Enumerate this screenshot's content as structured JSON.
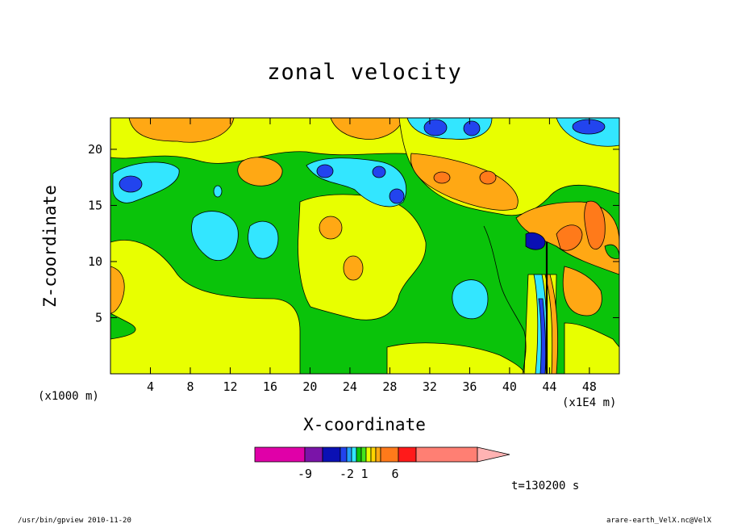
{
  "title": "zonal velocity",
  "x_unit_left": "(x1000 m)",
  "x_unit_right": "(x1E4 m)",
  "time_label": "t=130200 s",
  "footer_left": "/usr/bin/gpview  2010-11-20",
  "footer_right": "arare-earth_VelX.nc@VelX",
  "colorbar": {
    "colors": [
      "#e000a8",
      "#7a14a8",
      "#0a10b4",
      "#2244ee",
      "#22a0ff",
      "#33e6ff",
      "#0ac30a",
      "#44e41c",
      "#e8ff00",
      "#ffd400",
      "#ffa814",
      "#ff7a1a",
      "#ff1a1a",
      "#ff7f73",
      "#ffb3b3"
    ],
    "tick_labels": [
      "-9",
      "-2",
      "1",
      "6"
    ]
  },
  "chart_data": {
    "type": "heatmap",
    "title": "zonal velocity",
    "xlabel": "X-coordinate",
    "ylabel": "Z-coordinate",
    "x_ticks": [
      4,
      8,
      12,
      16,
      20,
      24,
      28,
      32,
      36,
      40,
      44,
      48
    ],
    "y_ticks": [
      5,
      10,
      15,
      20
    ],
    "xlim": [
      0,
      51
    ],
    "ylim": [
      0,
      22.8
    ],
    "colorbar_levels": [
      -9,
      -2,
      1,
      6
    ],
    "features": [
      {
        "x": 6,
        "z": 21.5,
        "level": "orange"
      },
      {
        "x": 16.5,
        "z": 17.5,
        "level": "orange"
      },
      {
        "x": 24.5,
        "z": 21.5,
        "level": "orange"
      },
      {
        "x": 33,
        "z": 17.5,
        "level": "orange"
      },
      {
        "x": 38,
        "z": 17.5,
        "level": "orange"
      },
      {
        "x": 47,
        "z": 14,
        "level": "orange"
      },
      {
        "x": 2,
        "z": 16.5,
        "level": "blue"
      },
      {
        "x": 22.5,
        "z": 18,
        "level": "blue"
      },
      {
        "x": 34,
        "z": 21.5,
        "level": "blue"
      },
      {
        "x": 48.5,
        "z": 21.5,
        "level": "blue"
      },
      {
        "x": 43.5,
        "z": 5,
        "level": "blue"
      },
      {
        "x": 12,
        "z": 12,
        "level": "cyan"
      },
      {
        "x": 36.5,
        "z": 6.5,
        "level": "cyan"
      },
      {
        "x": 24,
        "z": 11.5,
        "level": "yellow"
      },
      {
        "x": 8,
        "z": 7,
        "level": "yellow"
      }
    ]
  }
}
